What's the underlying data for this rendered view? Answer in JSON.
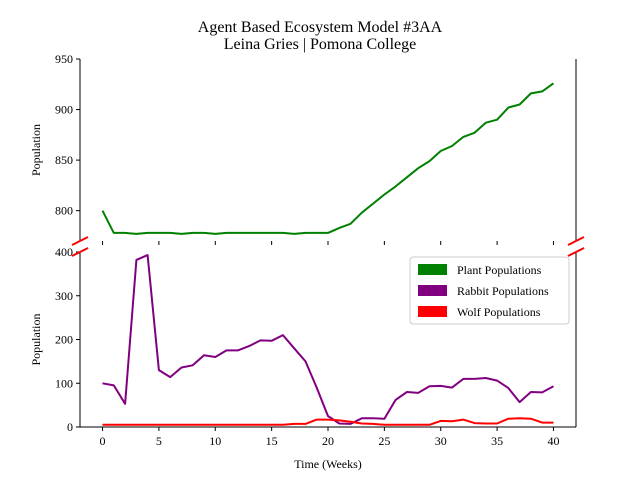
{
  "chart_data": {
    "type": "line",
    "title": "Agent Based Ecosystem Model #3AA",
    "subtitle": "Leina Gries | Pomona College",
    "xlabel": "Time (Weeks)",
    "xlim": [
      -2,
      42
    ],
    "xticks": [
      0,
      5,
      10,
      15,
      20,
      25,
      30,
      35,
      40
    ],
    "panels": [
      {
        "ylabel": "Population",
        "ylim": [
          770,
          950
        ],
        "yticks": [
          800,
          850,
          900,
          950
        ]
      },
      {
        "ylabel": "Population",
        "ylim": [
          0,
          400
        ],
        "yticks": [
          0,
          100,
          200,
          300,
          400
        ]
      }
    ],
    "x": [
      0,
      1,
      2,
      3,
      4,
      5,
      6,
      7,
      8,
      9,
      10,
      11,
      12,
      13,
      14,
      15,
      16,
      17,
      18,
      19,
      20,
      21,
      22,
      23,
      24,
      25,
      26,
      27,
      28,
      29,
      30,
      31,
      32,
      33,
      34,
      35,
      36,
      37,
      38,
      39,
      40
    ],
    "series": [
      {
        "name": "Plant Populations",
        "color": "#008000",
        "panel": 0,
        "values": [
          800,
          778,
          778,
          777,
          778,
          778,
          778,
          777,
          778,
          778,
          777,
          778,
          778,
          778,
          778,
          778,
          778,
          777,
          778,
          778,
          778,
          783,
          787,
          798,
          807,
          816,
          824,
          833,
          842,
          849,
          859,
          864,
          873,
          877,
          887,
          890,
          902,
          905,
          916,
          918,
          926
        ]
      },
      {
        "name": "Rabbit Populations",
        "color": "#800080",
        "panel": 1,
        "values": [
          100,
          95,
          53,
          382,
          393,
          130,
          114,
          136,
          141,
          164,
          160,
          175,
          175,
          185,
          198,
          197,
          210,
          180,
          150,
          90,
          25,
          8,
          7,
          20,
          20,
          19,
          62,
          80,
          78,
          93,
          94,
          90,
          110,
          110,
          112,
          106,
          89,
          57,
          80,
          79,
          93
        ]
      },
      {
        "name": "Wolf Populations",
        "color": "#ff0000",
        "panel": 1,
        "values": [
          5,
          5,
          5,
          5,
          5,
          5,
          5,
          5,
          5,
          5,
          5,
          5,
          5,
          5,
          5,
          5,
          5,
          7,
          7,
          17,
          17,
          15,
          12,
          8,
          7,
          5,
          5,
          5,
          5,
          5,
          14,
          13,
          17,
          9,
          8,
          8,
          19,
          20,
          19,
          10,
          10
        ]
      }
    ],
    "legend": {
      "placement": "right",
      "entries": [
        "Plant Populations",
        "Rabbit Populations",
        "Wolf Populations"
      ]
    },
    "grid": false,
    "broken_axis": true
  }
}
